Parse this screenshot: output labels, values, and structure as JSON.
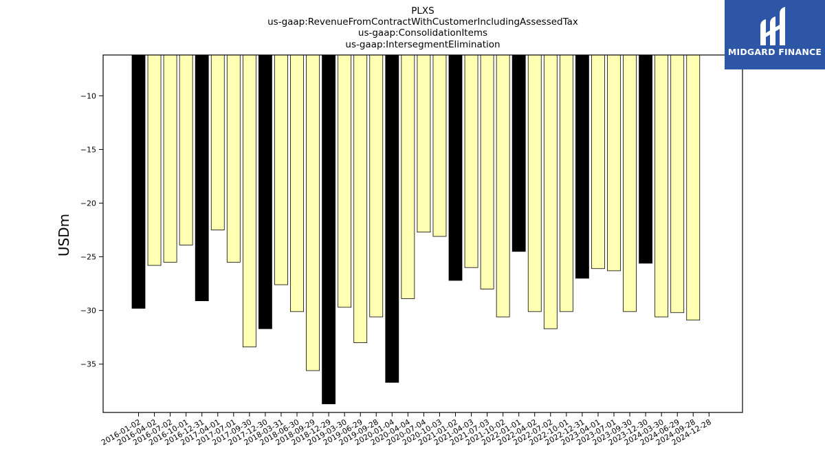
{
  "chart_data": {
    "type": "bar",
    "title_lines": [
      "PLXS",
      "us-gaap:RevenueFromContractWithCustomerIncludingAssessedTax",
      "us-gaap:ConsolidationItems",
      "us-gaap:IntersegmentElimination"
    ],
    "xlabel": "",
    "ylabel": "USDm",
    "ylim": [
      -39.5,
      -6.2
    ],
    "yticks": [
      -10,
      -15,
      -20,
      -25,
      -30,
      -35
    ],
    "categories": [
      "2016-01-02",
      "2016-04-02",
      "2016-07-02",
      "2016-10-01",
      "2016-12-31",
      "2017-04-01",
      "2017-07-01",
      "2017-09-30",
      "2017-12-30",
      "2018-03-31",
      "2018-06-30",
      "2018-09-29",
      "2018-12-29",
      "2019-03-30",
      "2019-06-29",
      "2019-09-28",
      "2020-01-04",
      "2020-04-04",
      "2020-07-04",
      "2020-10-03",
      "2021-01-02",
      "2021-04-03",
      "2021-07-03",
      "2021-10-02",
      "2022-01-01",
      "2022-04-02",
      "2022-07-02",
      "2022-10-01",
      "2022-12-31",
      "2023-04-01",
      "2023-07-01",
      "2023-09-30",
      "2023-12-30",
      "2024-03-30",
      "2024-06-29",
      "2024-09-28",
      "2024-12-28"
    ],
    "values": [
      -29.8,
      -25.8,
      -25.5,
      -23.9,
      -29.1,
      -22.5,
      -25.5,
      -33.4,
      -31.7,
      -27.6,
      -30.1,
      -35.6,
      -38.7,
      -29.7,
      -33.0,
      -30.6,
      -36.7,
      -28.9,
      -22.7,
      -23.1,
      -27.2,
      -26.0,
      -28.0,
      -30.6,
      -24.5,
      -30.1,
      -31.7,
      -30.1,
      -27.0,
      -26.1,
      -26.3,
      -30.1,
      -25.6,
      -30.6,
      -30.2,
      -30.9,
      null
    ],
    "highlight_indices": [
      0,
      4,
      8,
      12,
      16,
      20,
      24,
      28,
      32
    ],
    "colors": {
      "highlight": "#000000",
      "normal": "#ffffb3",
      "edge": "#000000"
    },
    "grid": false,
    "legend": "none"
  },
  "logo": {
    "text": "MIDGARD FINANCE",
    "background": "#2e56a6"
  }
}
